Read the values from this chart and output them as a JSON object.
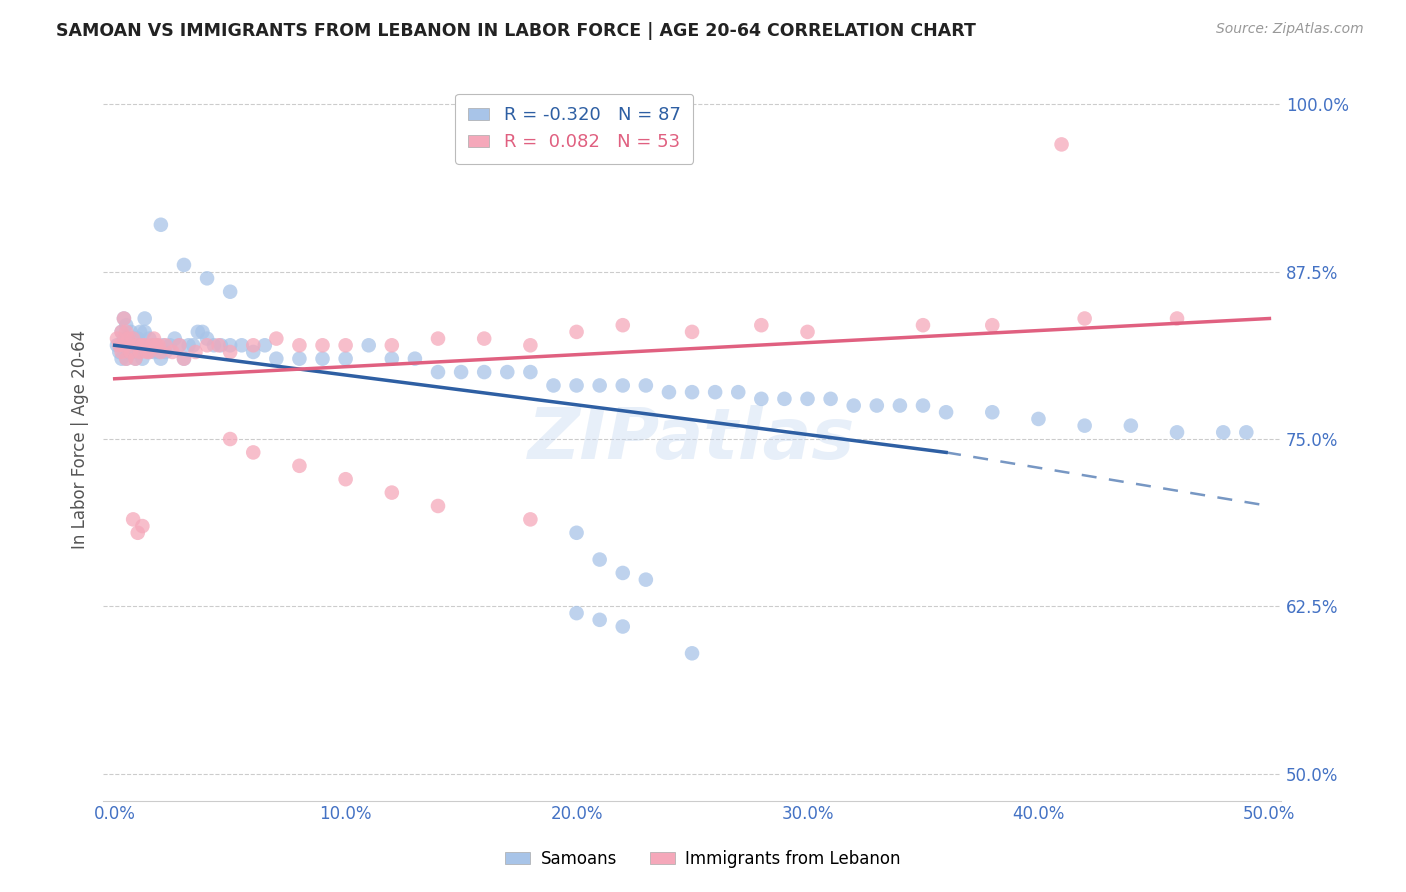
{
  "title": "SAMOAN VS IMMIGRANTS FROM LEBANON IN LABOR FORCE | AGE 20-64 CORRELATION CHART",
  "source": "Source: ZipAtlas.com",
  "xlabel_ticks": [
    "0.0%",
    "10.0%",
    "20.0%",
    "30.0%",
    "40.0%",
    "50.0%"
  ],
  "ylabel_ticks": [
    "100.0%",
    "87.5%",
    "75.0%",
    "62.5%",
    "50.0%"
  ],
  "xlabel_tick_vals": [
    0.0,
    0.1,
    0.2,
    0.3,
    0.4,
    0.5
  ],
  "ylabel_tick_vals": [
    1.0,
    0.875,
    0.75,
    0.625,
    0.5
  ],
  "xlim": [
    -0.005,
    0.505
  ],
  "ylim": [
    0.48,
    1.02
  ],
  "legend_label1": "Samoans",
  "legend_label2": "Immigrants from Lebanon",
  "blue_color": "#a8c4e8",
  "pink_color": "#f5a8ba",
  "blue_line_color": "#2e5fa3",
  "pink_line_color": "#e06080",
  "axis_label_color": "#4472c4",
  "ylabel": "In Labor Force | Age 20-64",
  "background_color": "#ffffff",
  "grid_color": "#cccccc",
  "watermark": "ZIPatlas",
  "R_blue": -0.32,
  "N_blue": 87,
  "R_pink": 0.082,
  "N_pink": 53,
  "blue_trend_x0": 0.0,
  "blue_trend_y0": 0.82,
  "blue_trend_x1": 0.36,
  "blue_trend_y1": 0.74,
  "blue_trend_xdash": 0.5,
  "blue_trend_ydash": 0.7,
  "pink_trend_x0": 0.0,
  "pink_trend_y0": 0.795,
  "pink_trend_x1": 0.5,
  "pink_trend_y1": 0.84,
  "blue_scatter_x": [
    0.001,
    0.002,
    0.003,
    0.003,
    0.004,
    0.004,
    0.005,
    0.005,
    0.005,
    0.006,
    0.006,
    0.007,
    0.007,
    0.008,
    0.008,
    0.009,
    0.009,
    0.01,
    0.01,
    0.011,
    0.011,
    0.012,
    0.012,
    0.013,
    0.013,
    0.014,
    0.015,
    0.015,
    0.016,
    0.017,
    0.018,
    0.019,
    0.02,
    0.021,
    0.022,
    0.024,
    0.026,
    0.028,
    0.03,
    0.032,
    0.034,
    0.036,
    0.038,
    0.04,
    0.043,
    0.046,
    0.05,
    0.055,
    0.06,
    0.065,
    0.07,
    0.08,
    0.09,
    0.1,
    0.11,
    0.12,
    0.13,
    0.14,
    0.15,
    0.16,
    0.17,
    0.18,
    0.19,
    0.2,
    0.21,
    0.22,
    0.23,
    0.24,
    0.25,
    0.26,
    0.27,
    0.28,
    0.29,
    0.3,
    0.31,
    0.32,
    0.33,
    0.34,
    0.35,
    0.36,
    0.38,
    0.4,
    0.42,
    0.44,
    0.46,
    0.48,
    0.49
  ],
  "blue_scatter_y": [
    0.82,
    0.815,
    0.81,
    0.83,
    0.825,
    0.84,
    0.82,
    0.81,
    0.835,
    0.825,
    0.815,
    0.82,
    0.83,
    0.815,
    0.825,
    0.82,
    0.81,
    0.825,
    0.815,
    0.82,
    0.83,
    0.82,
    0.81,
    0.83,
    0.84,
    0.82,
    0.815,
    0.825,
    0.82,
    0.815,
    0.82,
    0.815,
    0.81,
    0.82,
    0.815,
    0.82,
    0.825,
    0.82,
    0.81,
    0.82,
    0.82,
    0.83,
    0.83,
    0.825,
    0.82,
    0.82,
    0.82,
    0.82,
    0.815,
    0.82,
    0.81,
    0.81,
    0.81,
    0.81,
    0.82,
    0.81,
    0.81,
    0.8,
    0.8,
    0.8,
    0.8,
    0.8,
    0.79,
    0.79,
    0.79,
    0.79,
    0.79,
    0.785,
    0.785,
    0.785,
    0.785,
    0.78,
    0.78,
    0.78,
    0.78,
    0.775,
    0.775,
    0.775,
    0.775,
    0.77,
    0.77,
    0.765,
    0.76,
    0.76,
    0.755,
    0.755,
    0.755
  ],
  "blue_scatter_y_extra": [
    0.91,
    0.88,
    0.87,
    0.86,
    0.68,
    0.66,
    0.65,
    0.645,
    0.62,
    0.615,
    0.61,
    0.59
  ],
  "blue_scatter_x_extra": [
    0.02,
    0.03,
    0.04,
    0.05,
    0.2,
    0.21,
    0.22,
    0.23,
    0.2,
    0.21,
    0.22,
    0.25
  ],
  "pink_scatter_x": [
    0.001,
    0.002,
    0.003,
    0.003,
    0.004,
    0.004,
    0.005,
    0.005,
    0.006,
    0.006,
    0.007,
    0.008,
    0.009,
    0.01,
    0.011,
    0.012,
    0.013,
    0.014,
    0.015,
    0.016,
    0.017,
    0.018,
    0.019,
    0.02,
    0.022,
    0.025,
    0.028,
    0.03,
    0.035,
    0.04,
    0.045,
    0.05,
    0.06,
    0.07,
    0.08,
    0.09,
    0.1,
    0.12,
    0.14,
    0.16,
    0.18,
    0.2,
    0.22,
    0.25,
    0.28,
    0.3,
    0.35,
    0.38,
    0.42,
    0.46,
    0.008,
    0.01,
    0.012
  ],
  "pink_scatter_y": [
    0.825,
    0.82,
    0.815,
    0.83,
    0.82,
    0.84,
    0.83,
    0.81,
    0.82,
    0.825,
    0.815,
    0.825,
    0.81,
    0.82,
    0.815,
    0.82,
    0.82,
    0.815,
    0.815,
    0.82,
    0.825,
    0.82,
    0.82,
    0.815,
    0.82,
    0.815,
    0.82,
    0.81,
    0.815,
    0.82,
    0.82,
    0.815,
    0.82,
    0.825,
    0.82,
    0.82,
    0.82,
    0.82,
    0.825,
    0.825,
    0.82,
    0.83,
    0.835,
    0.83,
    0.835,
    0.83,
    0.835,
    0.835,
    0.84,
    0.84,
    0.69,
    0.68,
    0.685
  ],
  "pink_scatter_y_extra": [
    0.97,
    0.75,
    0.74,
    0.73,
    0.72,
    0.71,
    0.7,
    0.69
  ],
  "pink_scatter_x_extra": [
    0.41,
    0.05,
    0.06,
    0.08,
    0.1,
    0.12,
    0.14,
    0.18
  ]
}
